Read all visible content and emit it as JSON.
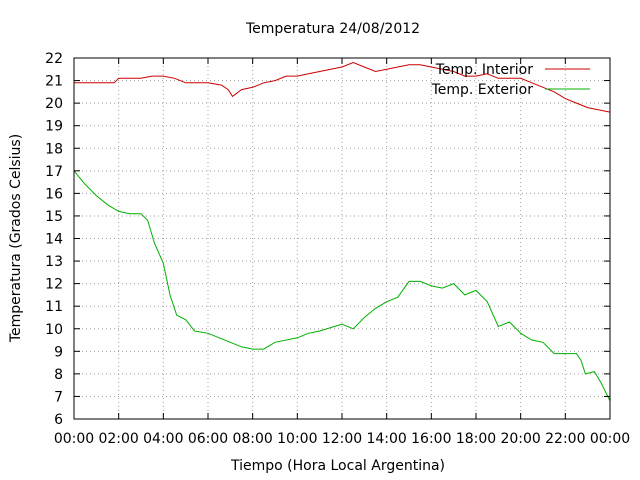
{
  "chart_data": {
    "type": "line",
    "title": "Temperatura 24/08/2012",
    "xlabel": "Tiempo (Hora Local Argentina)",
    "ylabel": "Temperatura (Grados Celsius)",
    "xlim": [
      0,
      24
    ],
    "ylim": [
      6,
      22
    ],
    "x_tick_values": [
      0,
      2,
      4,
      6,
      8,
      10,
      12,
      14,
      16,
      18,
      20,
      22,
      24
    ],
    "x_tick_labels": [
      "00:00",
      "02:00",
      "04:00",
      "06:00",
      "08:00",
      "10:00",
      "12:00",
      "14:00",
      "16:00",
      "18:00",
      "20:00",
      "22:00",
      "00:00"
    ],
    "y_tick_values": [
      6,
      7,
      8,
      9,
      10,
      11,
      12,
      13,
      14,
      15,
      16,
      17,
      18,
      19,
      20,
      21,
      22
    ],
    "y_tick_labels": [
      "6",
      "7",
      "8",
      "9",
      "10",
      "11",
      "12",
      "13",
      "14",
      "15",
      "16",
      "17",
      "18",
      "19",
      "20",
      "21",
      "22"
    ],
    "grid": true,
    "legend_position": "top-right",
    "series": [
      {
        "name": "Temp. Interior",
        "color": "#cc0000",
        "points": [
          [
            0,
            20.9
          ],
          [
            1,
            20.9
          ],
          [
            1.8,
            20.9
          ],
          [
            2,
            21.1
          ],
          [
            3,
            21.1
          ],
          [
            3.5,
            21.2
          ],
          [
            4,
            21.2
          ],
          [
            4.5,
            21.1
          ],
          [
            5,
            20.9
          ],
          [
            6,
            20.9
          ],
          [
            6.6,
            20.8
          ],
          [
            6.9,
            20.6
          ],
          [
            7.1,
            20.3
          ],
          [
            7.5,
            20.6
          ],
          [
            8,
            20.7
          ],
          [
            8.5,
            20.9
          ],
          [
            9,
            21.0
          ],
          [
            9.5,
            21.2
          ],
          [
            10,
            21.2
          ],
          [
            10.5,
            21.3
          ],
          [
            11,
            21.4
          ],
          [
            11.5,
            21.5
          ],
          [
            12,
            21.6
          ],
          [
            12.5,
            21.8
          ],
          [
            13,
            21.6
          ],
          [
            13.5,
            21.4
          ],
          [
            14,
            21.5
          ],
          [
            14.5,
            21.6
          ],
          [
            15,
            21.7
          ],
          [
            15.5,
            21.7
          ],
          [
            16,
            21.6
          ],
          [
            16.5,
            21.5
          ],
          [
            17,
            21.4
          ],
          [
            17.5,
            21.2
          ],
          [
            18,
            21.2
          ],
          [
            18.5,
            21.3
          ],
          [
            19,
            21.1
          ],
          [
            20,
            21.1
          ],
          [
            20.5,
            20.9
          ],
          [
            21,
            20.7
          ],
          [
            21.5,
            20.5
          ],
          [
            22,
            20.2
          ],
          [
            22.5,
            20.0
          ],
          [
            23,
            19.8
          ],
          [
            23.5,
            19.7
          ],
          [
            24,
            19.6
          ]
        ]
      },
      {
        "name": "Temp. Exterior",
        "color": "#00b000",
        "points": [
          [
            0,
            17.0
          ],
          [
            0.5,
            16.4
          ],
          [
            1,
            15.9
          ],
          [
            1.5,
            15.5
          ],
          [
            2,
            15.2
          ],
          [
            2.5,
            15.1
          ],
          [
            3,
            15.1
          ],
          [
            3.3,
            14.8
          ],
          [
            3.6,
            13.8
          ],
          [
            4,
            12.9
          ],
          [
            4.3,
            11.5
          ],
          [
            4.6,
            10.6
          ],
          [
            5,
            10.4
          ],
          [
            5.4,
            9.9
          ],
          [
            6,
            9.8
          ],
          [
            6.5,
            9.6
          ],
          [
            7,
            9.4
          ],
          [
            7.5,
            9.2
          ],
          [
            8,
            9.1
          ],
          [
            8.5,
            9.1
          ],
          [
            9,
            9.4
          ],
          [
            10,
            9.6
          ],
          [
            10.5,
            9.8
          ],
          [
            11,
            9.9
          ],
          [
            12,
            10.2
          ],
          [
            12.5,
            10.0
          ],
          [
            13,
            10.5
          ],
          [
            13.5,
            10.9
          ],
          [
            14,
            11.2
          ],
          [
            14.5,
            11.4
          ],
          [
            15,
            12.1
          ],
          [
            15.5,
            12.1
          ],
          [
            16,
            11.9
          ],
          [
            16.5,
            11.8
          ],
          [
            17,
            12.0
          ],
          [
            17.5,
            11.5
          ],
          [
            18,
            11.7
          ],
          [
            18.5,
            11.2
          ],
          [
            19,
            10.1
          ],
          [
            19.5,
            10.3
          ],
          [
            20,
            9.8
          ],
          [
            20.5,
            9.5
          ],
          [
            21,
            9.4
          ],
          [
            21.5,
            8.9
          ],
          [
            22,
            8.9
          ],
          [
            22.5,
            8.9
          ],
          [
            22.7,
            8.6
          ],
          [
            22.9,
            8.0
          ],
          [
            23.3,
            8.1
          ],
          [
            23.6,
            7.6
          ],
          [
            24,
            6.8
          ]
        ]
      }
    ]
  }
}
